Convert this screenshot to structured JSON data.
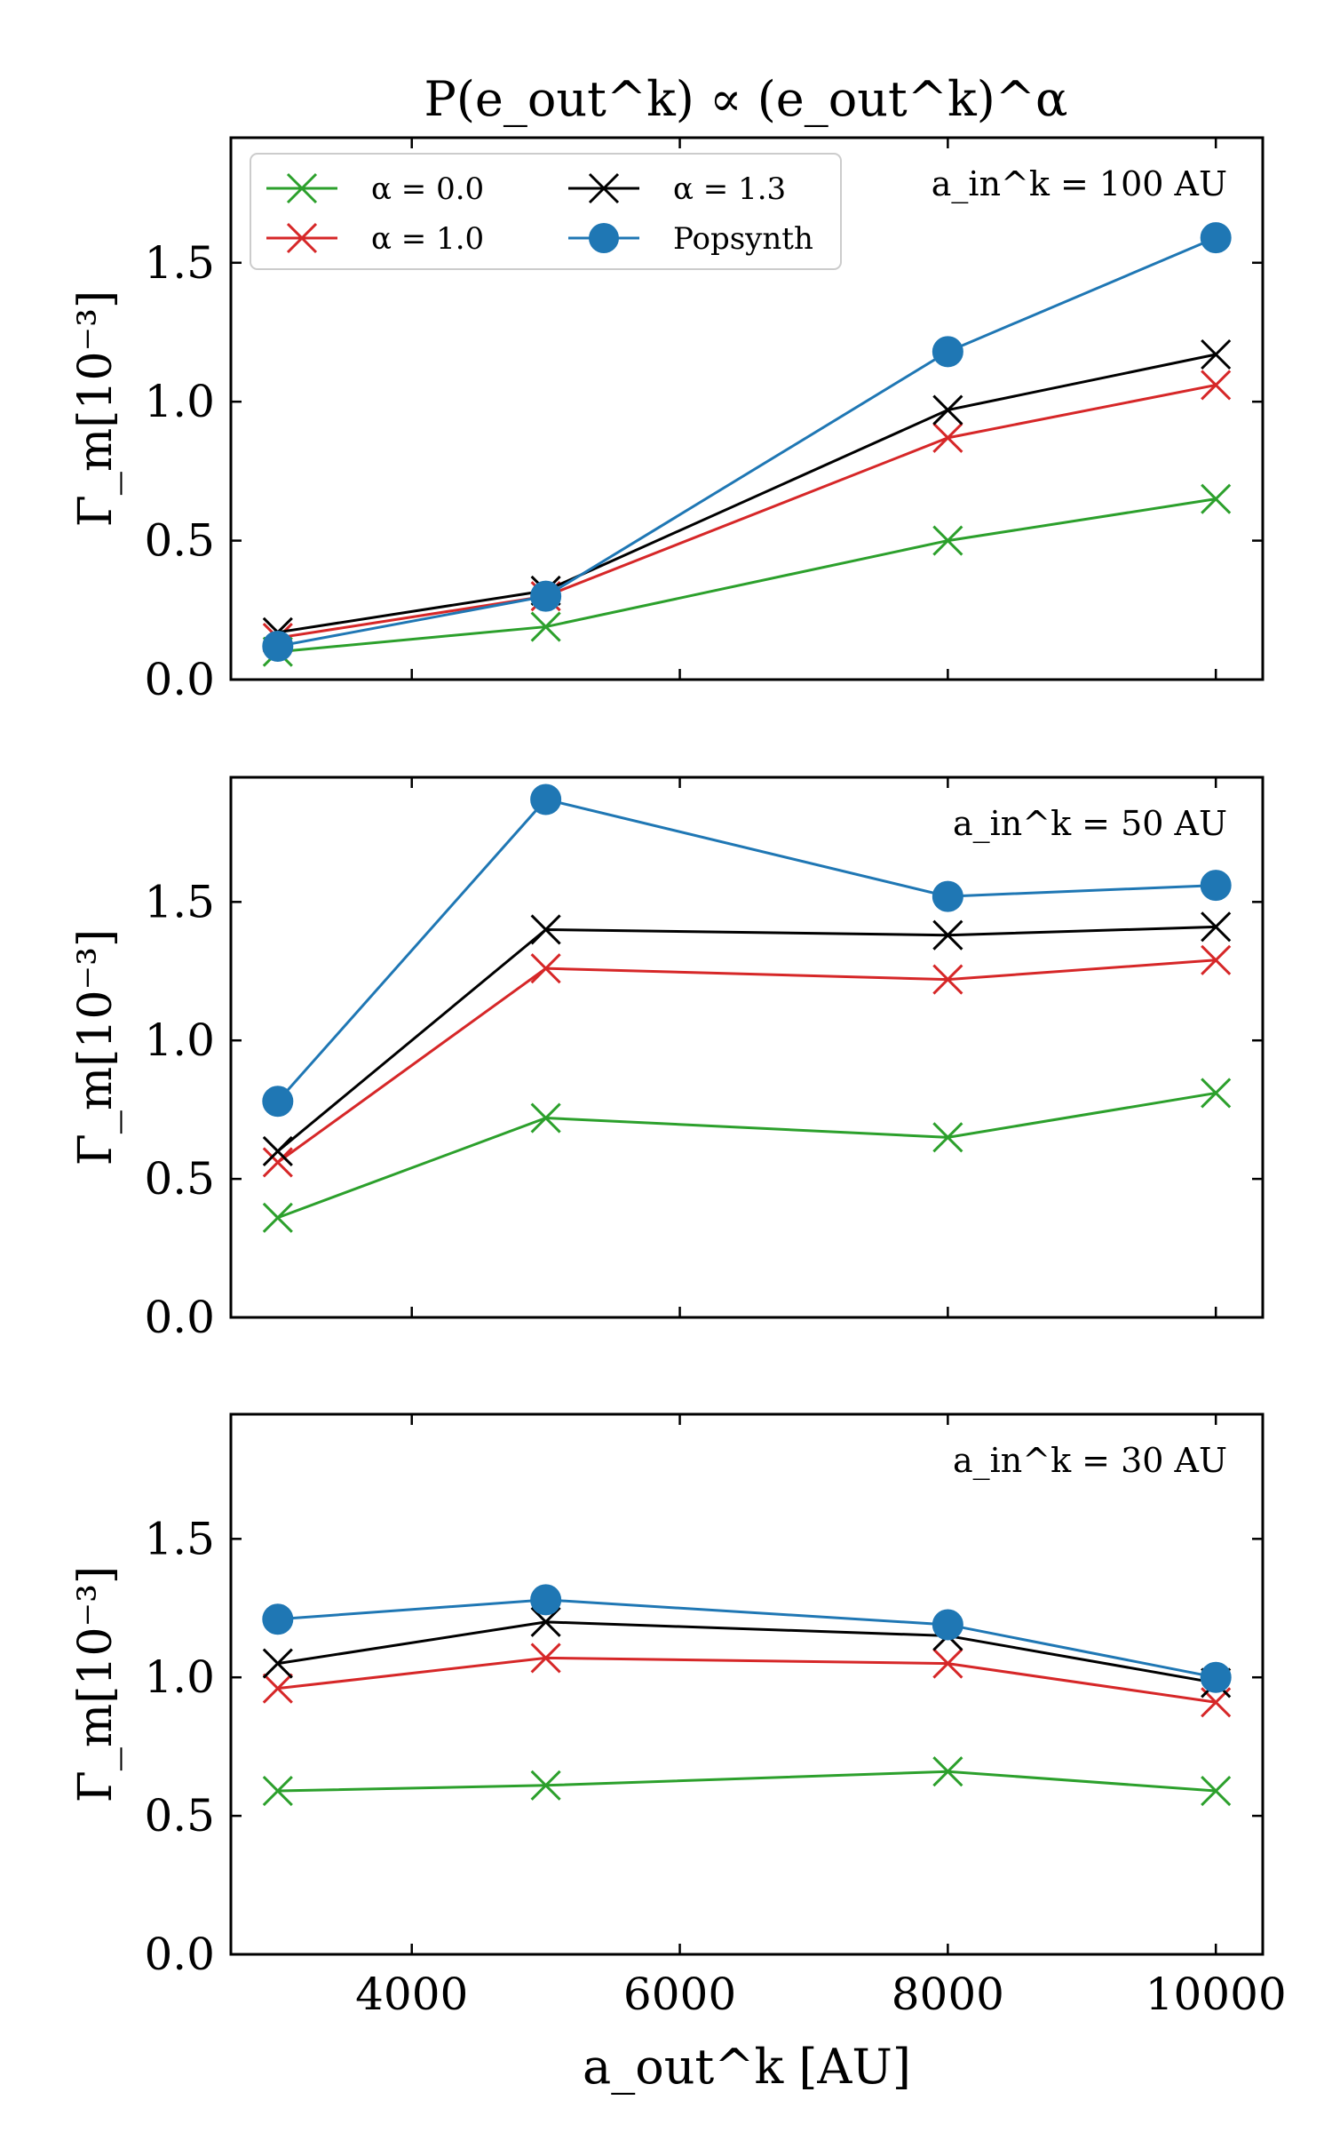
{
  "figure_title": "P(e_out^k) ∝ (e_out^k)^α",
  "chart_data": [
    {
      "type": "line",
      "panel": "top",
      "annotation": "a_in^k = 100 AU",
      "xlabel": "a_out^k [AU]",
      "ylabel": "Γ_m[10⁻³]",
      "x": [
        3000,
        5000,
        8000,
        10000
      ],
      "xlim": [
        2650,
        10350
      ],
      "ylim": [
        0.0,
        1.95
      ],
      "xticks": [
        4000,
        6000,
        8000,
        10000
      ],
      "yticks": [
        0.0,
        0.5,
        1.0,
        1.5
      ],
      "show_xticklabels": false,
      "legend_position": "top-left",
      "series": [
        {
          "name": "α = 0.0",
          "color": "#2ca02c",
          "marker": "x",
          "values": [
            0.1,
            0.19,
            0.5,
            0.65
          ]
        },
        {
          "name": "α = 1.0",
          "color": "#d62728",
          "marker": "x",
          "values": [
            0.15,
            0.3,
            0.87,
            1.06
          ]
        },
        {
          "name": "α = 1.3",
          "color": "#000000",
          "marker": "x",
          "values": [
            0.17,
            0.32,
            0.97,
            1.17
          ]
        },
        {
          "name": "Popsynth",
          "color": "#1f77b4",
          "marker": "o",
          "values": [
            0.12,
            0.3,
            1.18,
            1.59
          ]
        }
      ]
    },
    {
      "type": "line",
      "panel": "middle",
      "annotation": "a_in^k = 50 AU",
      "xlabel": "a_out^k [AU]",
      "ylabel": "Γ_m[10⁻³]",
      "x": [
        3000,
        5000,
        8000,
        10000
      ],
      "xlim": [
        2650,
        10350
      ],
      "ylim": [
        0.0,
        1.95
      ],
      "xticks": [
        4000,
        6000,
        8000,
        10000
      ],
      "yticks": [
        0.0,
        0.5,
        1.0,
        1.5
      ],
      "show_xticklabels": false,
      "series": [
        {
          "name": "α = 0.0",
          "color": "#2ca02c",
          "marker": "x",
          "values": [
            0.36,
            0.72,
            0.65,
            0.81
          ]
        },
        {
          "name": "α = 1.0",
          "color": "#d62728",
          "marker": "x",
          "values": [
            0.56,
            1.26,
            1.22,
            1.29
          ]
        },
        {
          "name": "α = 1.3",
          "color": "#000000",
          "marker": "x",
          "values": [
            0.6,
            1.4,
            1.38,
            1.41
          ]
        },
        {
          "name": "Popsynth",
          "color": "#1f77b4",
          "marker": "o",
          "values": [
            0.78,
            1.87,
            1.52,
            1.56
          ]
        }
      ]
    },
    {
      "type": "line",
      "panel": "bottom",
      "annotation": "a_in^k = 30 AU",
      "xlabel": "a_out^k [AU]",
      "ylabel": "Γ_m[10⁻³]",
      "x": [
        3000,
        5000,
        8000,
        10000
      ],
      "xlim": [
        2650,
        10350
      ],
      "ylim": [
        0.0,
        1.95
      ],
      "xticks": [
        4000,
        6000,
        8000,
        10000
      ],
      "yticks": [
        0.0,
        0.5,
        1.0,
        1.5
      ],
      "show_xticklabels": true,
      "series": [
        {
          "name": "α = 0.0",
          "color": "#2ca02c",
          "marker": "x",
          "values": [
            0.59,
            0.61,
            0.66,
            0.59
          ]
        },
        {
          "name": "α = 1.0",
          "color": "#d62728",
          "marker": "x",
          "values": [
            0.96,
            1.07,
            1.05,
            0.91
          ]
        },
        {
          "name": "α = 1.3",
          "color": "#000000",
          "marker": "x",
          "values": [
            1.05,
            1.2,
            1.15,
            0.98
          ]
        },
        {
          "name": "Popsynth",
          "color": "#1f77b4",
          "marker": "o",
          "values": [
            1.21,
            1.28,
            1.19,
            1.0
          ]
        }
      ]
    }
  ]
}
